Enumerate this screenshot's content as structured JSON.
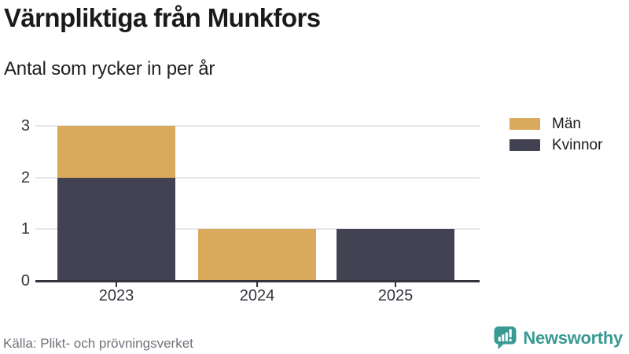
{
  "chart_data": {
    "type": "bar",
    "stacked": true,
    "title": "Värnpliktiga från Munkfors",
    "subtitle": "Antal som rycker in per år",
    "categories": [
      "2023",
      "2024",
      "2025"
    ],
    "series": [
      {
        "name": "Män",
        "color": "#d9a95c",
        "values": [
          1,
          1,
          0
        ]
      },
      {
        "name": "Kvinnor",
        "color": "#434253",
        "values": [
          2,
          0,
          1
        ]
      }
    ],
    "stack_bottom_to_top": [
      "Kvinnor",
      "Män"
    ],
    "ylim": [
      0,
      3
    ],
    "yticks": [
      0,
      1,
      2,
      3
    ],
    "xlabel": "",
    "ylabel": "",
    "grid": "horizontal",
    "legend_position": "top-right"
  },
  "footer": {
    "source": "Källa: Plikt- och prövningsverket",
    "brand_name": "Newsworthy"
  },
  "theme": {
    "background": "#ffffff",
    "title_color": "#1a1a1a",
    "axis_color": "#33333d",
    "gridline_color": "#e6e6e9",
    "source_color": "#71717b",
    "brand_teal": "#399a92"
  }
}
